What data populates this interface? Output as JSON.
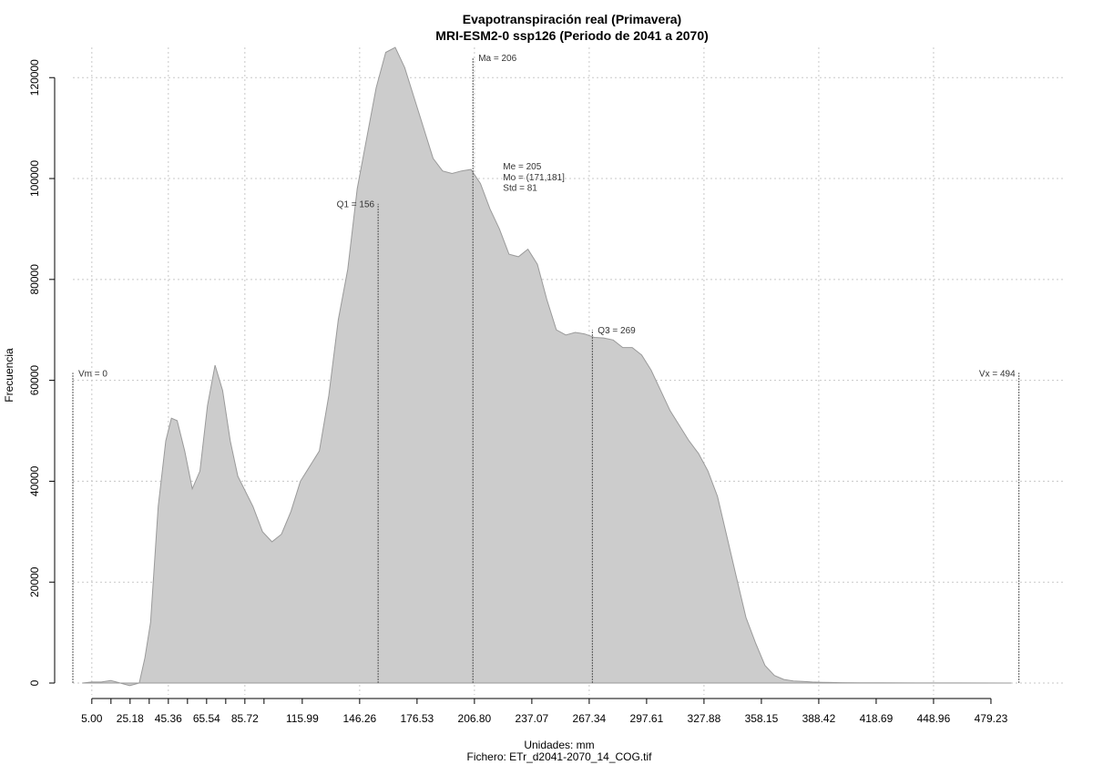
{
  "chart_data": {
    "type": "area",
    "title": "Evapotranspiración real (Primavera)",
    "subtitle": "MRI-ESM2-0 ssp126 (Periodo de 2041 a 2070)",
    "xlabel": "Unidades: mm",
    "caption": "Fichero: ETr_d2041-2070_14_COG.tif",
    "ylabel": "Frecuencia",
    "xlim": [
      -5,
      510
    ],
    "ylim": [
      0,
      126000
    ],
    "x_ticks": [
      5.0,
      25.18,
      45.36,
      65.54,
      85.72,
      115.99,
      146.26,
      176.53,
      206.8,
      237.07,
      267.34,
      297.61,
      327.88,
      358.15,
      388.42,
      418.69,
      448.96,
      479.23
    ],
    "x_tick_labels": [
      "5.00",
      "25.18",
      "45.36",
      "65.54",
      "85.72",
      "115.99",
      "146.26",
      "176.53",
      "206.80",
      "237.07",
      "267.34",
      "297.61",
      "327.88",
      "358.15",
      "388.42",
      "418.69",
      "448.96",
      "479.23"
    ],
    "x_minor_ticks": [
      15.09,
      35.27,
      55.45,
      75.63,
      95.81
    ],
    "y_ticks": [
      0,
      20000,
      40000,
      60000,
      80000,
      100000,
      120000
    ],
    "y_tick_labels": [
      "0",
      "20000",
      "40000",
      "60000",
      "80000",
      "100000",
      "120000"
    ],
    "grid": true,
    "fill_color": "#cccccc",
    "line_color": "#9a9a9a",
    "series": [
      {
        "x": [
          0,
          5,
          10,
          15,
          20,
          25,
          30,
          33,
          36,
          40,
          44,
          47,
          50,
          54,
          58,
          62,
          66,
          70,
          74,
          78,
          82,
          86,
          90,
          95,
          100,
          105,
          110,
          115,
          120,
          125,
          130,
          135,
          140,
          145,
          150,
          155,
          160,
          165,
          170,
          175,
          180,
          185,
          190,
          195,
          200,
          205,
          210,
          215,
          220,
          225,
          230,
          235,
          240,
          245,
          250,
          255,
          260,
          265,
          270,
          275,
          280,
          285,
          290,
          295,
          300,
          305,
          310,
          315,
          320,
          325,
          330,
          335,
          340,
          345,
          350,
          355,
          360,
          365,
          370,
          375,
          380,
          385,
          390,
          395,
          400,
          410,
          420,
          440,
          460,
          490
        ],
        "y": [
          0,
          200,
          200,
          500,
          0,
          -500,
          0,
          5000,
          12000,
          35000,
          48000,
          52500,
          52000,
          46000,
          38500,
          42000,
          55000,
          63000,
          58000,
          48000,
          41000,
          38000,
          35000,
          30000,
          28000,
          29500,
          34000,
          40000,
          43000,
          46000,
          57000,
          72000,
          82000,
          98000,
          108000,
          118000,
          125000,
          126000,
          122000,
          116000,
          110000,
          104000,
          101500,
          101000,
          101500,
          101800,
          99000,
          94000,
          90000,
          85000,
          84500,
          86000,
          83000,
          76000,
          70000,
          69000,
          69500,
          69200,
          68500,
          68400,
          68000,
          66500,
          66500,
          65000,
          62000,
          58000,
          54000,
          51000,
          48000,
          45500,
          42000,
          37000,
          29000,
          21000,
          13000,
          8000,
          3500,
          1500,
          700,
          400,
          300,
          200,
          150,
          100,
          80,
          60,
          40,
          20,
          10,
          0
        ]
      }
    ],
    "annotations": [
      {
        "label": "Vm = 0",
        "x": -5,
        "y": 61500,
        "marker": true,
        "align": "start"
      },
      {
        "label": "Q1 = 156",
        "x": 156,
        "y": 95000,
        "marker": true,
        "align": "end"
      },
      {
        "label": "Ma = 206",
        "x": 206,
        "y": 124000,
        "marker": true,
        "align": "start"
      },
      {
        "label": "Me = 205",
        "x": 219,
        "y": 102500,
        "marker": false,
        "align": "start"
      },
      {
        "label": "Mo = (171,181]",
        "x": 219,
        "y": 100400,
        "marker": false,
        "align": "start"
      },
      {
        "label": "Std = 81",
        "x": 219,
        "y": 98300,
        "marker": false,
        "align": "start"
      },
      {
        "label": "Q3 = 269",
        "x": 269,
        "y": 70000,
        "marker": true,
        "align": "start"
      },
      {
        "label": "Vx = 494",
        "x": 494,
        "y": 61500,
        "marker": true,
        "align": "end"
      }
    ]
  }
}
